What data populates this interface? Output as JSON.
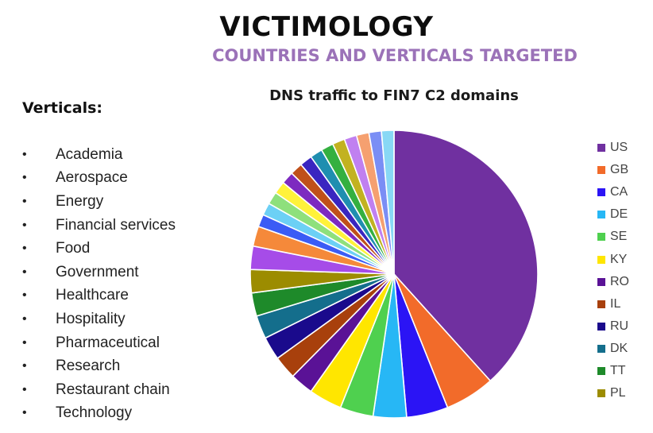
{
  "header": {
    "title": "VICTIMOLOGY",
    "subtitle": "COUNTRIES AND VERTICALS TARGETED"
  },
  "verticals": {
    "heading": "Verticals:",
    "items": [
      "Academia",
      "Aerospace",
      "Energy",
      "Financial services",
      "Food",
      "Government",
      "Healthcare",
      "Hospitality",
      "Pharmaceutical",
      "Research",
      "Restaurant chain",
      "Technology"
    ]
  },
  "chart_data": {
    "type": "pie",
    "title": "DNS traffic to FIN7 C2 domains",
    "legend_position": "right",
    "slices": [
      {
        "label": "US",
        "value": 41.0,
        "color": "#7030a0"
      },
      {
        "label": "GB",
        "value": 6.0,
        "color": "#f26b2a"
      },
      {
        "label": "CA",
        "value": 5.0,
        "color": "#2b14f5"
      },
      {
        "label": "DE",
        "value": 4.0,
        "color": "#27b7f5"
      },
      {
        "label": "SE",
        "value": 4.0,
        "color": "#4fd04f"
      },
      {
        "label": "KY",
        "value": 4.0,
        "color": "#ffe600"
      },
      {
        "label": "RO",
        "value": 2.8,
        "color": "#5a1296"
      },
      {
        "label": "IL",
        "value": 2.8,
        "color": "#a8400c"
      },
      {
        "label": "RU",
        "value": 2.8,
        "color": "#1a0a8c"
      },
      {
        "label": "DK",
        "value": 2.8,
        "color": "#146e8c"
      },
      {
        "label": "TT",
        "value": 2.8,
        "color": "#1e8a2a"
      },
      {
        "label": "PL",
        "value": 2.8,
        "color": "#9c8c00"
      },
      {
        "label": "",
        "value": 2.8,
        "color": "#a64ce8"
      },
      {
        "label": "",
        "value": 2.4,
        "color": "#f5893a"
      },
      {
        "label": "",
        "value": 1.5,
        "color": "#3b5cf5"
      },
      {
        "label": "",
        "value": 1.5,
        "color": "#6cd0f5"
      },
      {
        "label": "",
        "value": 1.5,
        "color": "#8ee07c"
      },
      {
        "label": "",
        "value": 1.5,
        "color": "#fff23a"
      },
      {
        "label": "",
        "value": 1.5,
        "color": "#7d2ac0"
      },
      {
        "label": "",
        "value": 1.5,
        "color": "#c0501a"
      },
      {
        "label": "",
        "value": 1.5,
        "color": "#3a26c0"
      },
      {
        "label": "",
        "value": 1.5,
        "color": "#1f8eb0"
      },
      {
        "label": "",
        "value": 1.5,
        "color": "#34b040"
      },
      {
        "label": "",
        "value": 1.5,
        "color": "#c2b220"
      },
      {
        "label": "",
        "value": 1.5,
        "color": "#c080f0"
      },
      {
        "label": "",
        "value": 1.5,
        "color": "#f5a070"
      },
      {
        "label": "",
        "value": 1.5,
        "color": "#7a8ef5"
      },
      {
        "label": "",
        "value": 1.5,
        "color": "#88d8f5"
      }
    ]
  }
}
